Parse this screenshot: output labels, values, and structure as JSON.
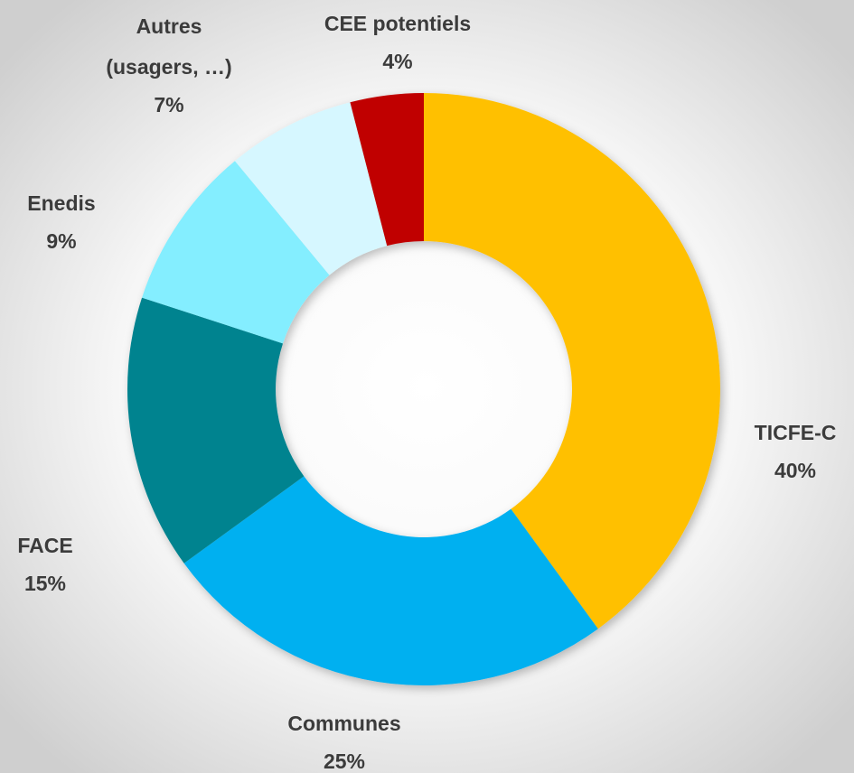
{
  "chart_data": {
    "type": "donut",
    "categories": [
      "TICFE-C",
      "Communes",
      "FACE",
      "Enedis",
      "Autres (usagers, …)",
      "CEE potentiels"
    ],
    "values": [
      40,
      25,
      15,
      9,
      7,
      4
    ],
    "value_labels": [
      "40%",
      "25%",
      "15%",
      "9%",
      "7%",
      "4%"
    ],
    "colors": [
      "#FFC000",
      "#00B0F0",
      "#00838F",
      "#84EEFF",
      "#D6F7FF",
      "#C00000"
    ]
  }
}
